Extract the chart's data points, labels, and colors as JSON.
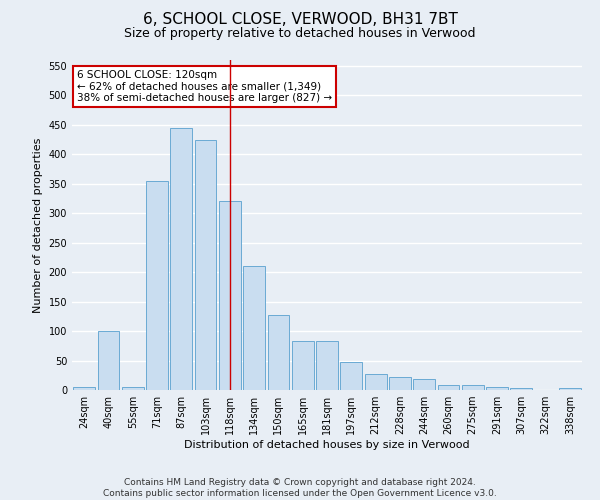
{
  "title": "6, SCHOOL CLOSE, VERWOOD, BH31 7BT",
  "subtitle": "Size of property relative to detached houses in Verwood",
  "xlabel": "Distribution of detached houses by size in Verwood",
  "ylabel": "Number of detached properties",
  "categories": [
    "24sqm",
    "40sqm",
    "55sqm",
    "71sqm",
    "87sqm",
    "103sqm",
    "118sqm",
    "134sqm",
    "150sqm",
    "165sqm",
    "181sqm",
    "197sqm",
    "212sqm",
    "228sqm",
    "244sqm",
    "260sqm",
    "275sqm",
    "291sqm",
    "307sqm",
    "322sqm",
    "338sqm"
  ],
  "values": [
    5,
    100,
    5,
    355,
    445,
    425,
    320,
    210,
    128,
    83,
    83,
    48,
    28,
    22,
    18,
    8,
    8,
    5,
    3,
    0,
    3
  ],
  "bar_color": "#c9ddf0",
  "bar_edge_color": "#6aaad4",
  "vline_x": 6,
  "vline_color": "#cc0000",
  "annotation_text": "6 SCHOOL CLOSE: 120sqm\n← 62% of detached houses are smaller (1,349)\n38% of semi-detached houses are larger (827) →",
  "annotation_box_color": "#ffffff",
  "annotation_box_edge_color": "#cc0000",
  "footer_text": "Contains HM Land Registry data © Crown copyright and database right 2024.\nContains public sector information licensed under the Open Government Licence v3.0.",
  "ylim": [
    0,
    560
  ],
  "yticks": [
    0,
    50,
    100,
    150,
    200,
    250,
    300,
    350,
    400,
    450,
    500,
    550
  ],
  "background_color": "#e8eef5",
  "grid_color": "#ffffff",
  "title_fontsize": 11,
  "subtitle_fontsize": 9,
  "axis_label_fontsize": 8,
  "tick_fontsize": 7,
  "footer_fontsize": 6.5,
  "annotation_fontsize": 7.5
}
